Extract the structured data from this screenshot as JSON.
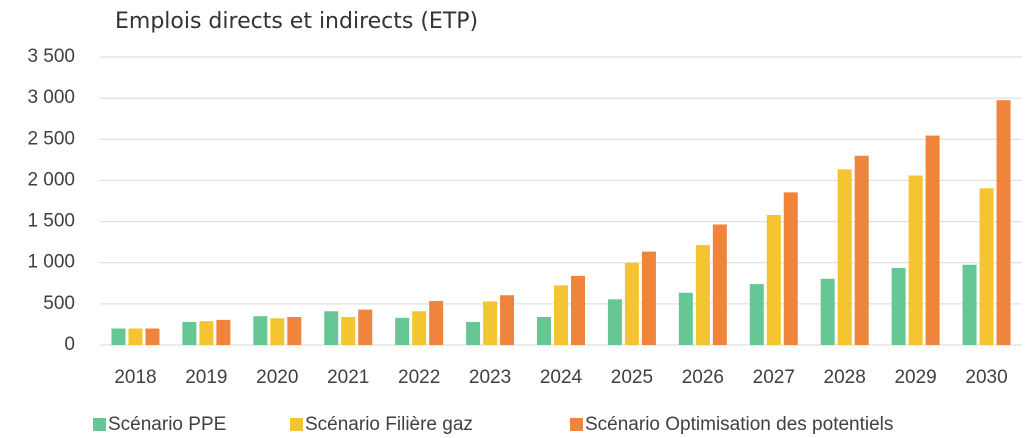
{
  "chart_data": {
    "type": "bar",
    "title": "Emplois directs et indirects (ETP)",
    "categories": [
      "2018",
      "2019",
      "2020",
      "2021",
      "2022",
      "2023",
      "2024",
      "2025",
      "2026",
      "2027",
      "2028",
      "2029",
      "2030"
    ],
    "series": [
      {
        "name": "Scénario PPE",
        "color": "#66c795",
        "values": [
          200,
          280,
          350,
          410,
          330,
          280,
          340,
          555,
          635,
          740,
          805,
          935,
          975
        ]
      },
      {
        "name": "Scénario Filière gaz",
        "color": "#f5c531",
        "values": [
          200,
          290,
          325,
          340,
          410,
          530,
          725,
          1000,
          1215,
          1580,
          2135,
          2060,
          1905
        ]
      },
      {
        "name": "Scénario Optimisation des potentiels",
        "color": "#ef843c",
        "values": [
          200,
          305,
          340,
          430,
          535,
          605,
          840,
          1135,
          1465,
          1855,
          2300,
          2545,
          2975
        ]
      }
    ],
    "ylim": [
      0,
      3500
    ],
    "yticks": [
      0,
      500,
      {
        "value": 1000,
        "label": "1 000"
      },
      {
        "value": 1500,
        "label": "1 500"
      },
      {
        "value": 2000,
        "label": "2 000"
      },
      {
        "value": 2500,
        "label": "2 500"
      },
      {
        "value": 3000,
        "label": "3 000"
      },
      {
        "value": 3500,
        "label": "3 500"
      }
    ],
    "grid": true,
    "legend": "bottom"
  }
}
